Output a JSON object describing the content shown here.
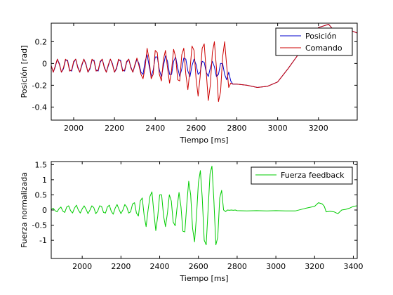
{
  "chart_data": [
    {
      "type": "line",
      "xlabel": "Tiempo [ms]",
      "ylabel": "Posición [rad]",
      "xlim": [
        1890,
        3390
      ],
      "ylim": [
        -0.52,
        0.37
      ],
      "xticks": [
        2000,
        2200,
        2400,
        2600,
        2800,
        3000,
        3200
      ],
      "yticks": [
        0.2,
        0,
        -0.2,
        -0.4
      ],
      "ytick_labels": [
        "0.2",
        "0",
        "-0.2",
        "-0.4"
      ],
      "legend": {
        "placement": "top-right"
      },
      "series": [
        {
          "name": "Posición",
          "color": "#0000cc",
          "x": [
            1890,
            1900,
            1910,
            1920,
            1930,
            1940,
            1950,
            1960,
            1970,
            1980,
            1990,
            2000,
            2010,
            2020,
            2030,
            2040,
            2050,
            2060,
            2070,
            2080,
            2090,
            2100,
            2110,
            2120,
            2130,
            2140,
            2150,
            2160,
            2170,
            2180,
            2190,
            2200,
            2210,
            2220,
            2230,
            2240,
            2250,
            2260,
            2270,
            2280,
            2290,
            2300,
            2310,
            2320,
            2330,
            2340,
            2350,
            2360,
            2370,
            2380,
            2390,
            2400,
            2410,
            2420,
            2430,
            2440,
            2450,
            2460,
            2470,
            2480,
            2490,
            2500,
            2510,
            2520,
            2530,
            2540,
            2550,
            2560,
            2570,
            2580,
            2590,
            2600,
            2610,
            2620,
            2630,
            2640,
            2650,
            2660,
            2670,
            2680,
            2690,
            2700,
            2710,
            2720,
            2730,
            2740,
            2750,
            2760,
            2770,
            2780,
            2790,
            2800,
            2850,
            2900,
            2950,
            3000,
            3050,
            3100,
            3150,
            3200,
            3250,
            3300,
            3350,
            3390
          ],
          "y": [
            -0.02,
            -0.08,
            -0.03,
            0.04,
            0.0,
            -0.08,
            -0.05,
            0.03,
            0.03,
            -0.06,
            -0.07,
            0.01,
            0.04,
            -0.03,
            -0.08,
            -0.02,
            0.04,
            0.0,
            -0.08,
            -0.05,
            0.03,
            0.03,
            -0.06,
            -0.07,
            0.01,
            0.04,
            -0.03,
            -0.08,
            -0.02,
            0.04,
            0.0,
            -0.08,
            -0.05,
            0.03,
            0.03,
            -0.06,
            -0.07,
            0.01,
            0.04,
            -0.03,
            -0.08,
            -0.02,
            0.04,
            0.0,
            -0.08,
            -0.1,
            0.02,
            0.08,
            -0.02,
            -0.12,
            -0.06,
            0.06,
            0.06,
            -0.06,
            -0.12,
            -0.02,
            0.07,
            0.02,
            -0.1,
            -0.1,
            0.02,
            0.06,
            -0.04,
            -0.12,
            -0.05,
            0.05,
            0.04,
            -0.07,
            -0.12,
            -0.02,
            0.04,
            -0.01,
            -0.1,
            -0.08,
            0.02,
            0.01,
            -0.08,
            -0.12,
            -0.04,
            0.02,
            -0.03,
            -0.12,
            -0.1,
            0.0,
            0.0,
            -0.1,
            -0.15,
            -0.08,
            -0.16,
            -0.19,
            -0.19,
            -0.19,
            -0.2,
            -0.22,
            -0.21,
            -0.17,
            -0.05,
            0.08,
            0.22,
            0.33,
            0.36,
            0.25,
            0.31,
            0.28
          ]
        },
        {
          "name": "Comando",
          "color": "#cc0000",
          "x": [
            1890,
            1900,
            1910,
            1920,
            1930,
            1940,
            1950,
            1960,
            1970,
            1980,
            1990,
            2000,
            2010,
            2020,
            2030,
            2040,
            2050,
            2060,
            2070,
            2080,
            2090,
            2100,
            2110,
            2120,
            2130,
            2140,
            2150,
            2160,
            2170,
            2180,
            2190,
            2200,
            2210,
            2220,
            2230,
            2240,
            2250,
            2260,
            2270,
            2280,
            2290,
            2300,
            2310,
            2320,
            2330,
            2340,
            2350,
            2360,
            2370,
            2380,
            2390,
            2400,
            2410,
            2420,
            2430,
            2440,
            2450,
            2460,
            2470,
            2480,
            2490,
            2500,
            2510,
            2520,
            2530,
            2540,
            2550,
            2560,
            2570,
            2580,
            2590,
            2600,
            2610,
            2620,
            2630,
            2640,
            2650,
            2660,
            2670,
            2680,
            2690,
            2700,
            2710,
            2720,
            2730,
            2740,
            2750,
            2760,
            2770,
            2780,
            2790,
            2800,
            2850,
            2900,
            2950,
            3000,
            3050,
            3100,
            3150,
            3200,
            3250,
            3300,
            3350,
            3390
          ],
          "y": [
            -0.02,
            -0.08,
            -0.02,
            0.04,
            -0.01,
            -0.08,
            -0.04,
            0.04,
            0.02,
            -0.07,
            -0.06,
            0.02,
            0.04,
            -0.04,
            -0.08,
            -0.01,
            0.04,
            -0.01,
            -0.08,
            -0.04,
            0.04,
            0.02,
            -0.07,
            -0.06,
            0.02,
            0.04,
            -0.04,
            -0.08,
            -0.01,
            0.04,
            -0.01,
            -0.08,
            -0.04,
            0.04,
            0.02,
            -0.07,
            -0.06,
            0.02,
            0.04,
            -0.04,
            -0.08,
            -0.01,
            0.05,
            -0.02,
            -0.1,
            -0.14,
            -0.04,
            0.14,
            0.04,
            -0.14,
            -0.1,
            0.12,
            0.1,
            -0.1,
            -0.16,
            0.04,
            0.12,
            -0.04,
            -0.18,
            -0.06,
            0.13,
            0.06,
            -0.15,
            -0.16,
            0.08,
            0.14,
            -0.1,
            -0.24,
            -0.06,
            0.16,
            0.12,
            -0.14,
            -0.3,
            -0.12,
            0.14,
            0.18,
            -0.08,
            -0.34,
            -0.2,
            0.1,
            0.2,
            -0.04,
            -0.35,
            -0.26,
            0.06,
            0.2,
            -0.02,
            -0.22,
            -0.18,
            -0.19,
            -0.19,
            -0.19,
            -0.2,
            -0.22,
            -0.21,
            -0.17,
            -0.05,
            0.08,
            0.22,
            0.33,
            0.36,
            0.25,
            0.31,
            0.28
          ]
        }
      ]
    },
    {
      "type": "line",
      "xlabel": "Tiempo [ms]",
      "ylabel": "Fuerza normalizada",
      "xlim": [
        1840,
        3420
      ],
      "ylim": [
        -1.6,
        1.6
      ],
      "xticks": [
        2000,
        2200,
        2400,
        2600,
        2800,
        3000,
        3200,
        3400
      ],
      "yticks": [
        1.5,
        1,
        0.5,
        0,
        -0.5,
        -1
      ],
      "ytick_labels": [
        "1.5",
        "1",
        "0.5",
        "0",
        "-0.5",
        "-1"
      ],
      "legend": {
        "placement": "top-right"
      },
      "series": [
        {
          "name": "Fuerza feedback",
          "color": "#00cc00",
          "x": [
            1840,
            1850,
            1860,
            1870,
            1880,
            1890,
            1900,
            1910,
            1920,
            1930,
            1940,
            1950,
            1960,
            1970,
            1980,
            1990,
            2000,
            2010,
            2020,
            2030,
            2040,
            2050,
            2060,
            2070,
            2080,
            2090,
            2100,
            2110,
            2120,
            2130,
            2140,
            2150,
            2160,
            2170,
            2180,
            2190,
            2200,
            2210,
            2220,
            2230,
            2240,
            2250,
            2260,
            2270,
            2280,
            2290,
            2300,
            2310,
            2320,
            2330,
            2340,
            2350,
            2360,
            2370,
            2380,
            2390,
            2400,
            2410,
            2420,
            2430,
            2440,
            2450,
            2460,
            2470,
            2480,
            2490,
            2500,
            2510,
            2520,
            2530,
            2540,
            2550,
            2560,
            2570,
            2580,
            2590,
            2600,
            2610,
            2620,
            2630,
            2640,
            2650,
            2660,
            2670,
            2680,
            2690,
            2700,
            2710,
            2720,
            2730,
            2740,
            2750,
            2760,
            2770,
            2780,
            2790,
            2800,
            2850,
            2900,
            2950,
            3000,
            3050,
            3100,
            3150,
            3200,
            3220,
            3240,
            3250,
            3260,
            3280,
            3300,
            3320,
            3340,
            3360,
            3380,
            3400,
            3420
          ],
          "y": [
            0.02,
            0.06,
            -0.02,
            -0.06,
            0.04,
            0.1,
            -0.04,
            -0.08,
            0.1,
            0.14,
            -0.02,
            -0.1,
            0.06,
            0.16,
            0.0,
            -0.1,
            0.04,
            0.14,
            0.02,
            -0.12,
            0.0,
            0.14,
            0.08,
            -0.12,
            -0.04,
            0.14,
            0.12,
            -0.08,
            -0.1,
            0.1,
            0.16,
            -0.04,
            -0.14,
            0.06,
            0.18,
            0.02,
            -0.12,
            0.0,
            0.18,
            0.1,
            -0.1,
            -0.06,
            0.2,
            0.24,
            -0.1,
            -0.2,
            0.3,
            0.4,
            -0.2,
            -0.55,
            0.0,
            0.45,
            0.6,
            -0.1,
            -0.68,
            -0.2,
            0.5,
            0.5,
            -0.2,
            -0.55,
            -0.1,
            0.5,
            0.3,
            -0.4,
            -0.52,
            0.1,
            0.58,
            0.1,
            -0.7,
            -0.72,
            0.2,
            0.95,
            0.5,
            -0.6,
            -1.05,
            -0.2,
            0.9,
            1.3,
            0.4,
            -1.0,
            -1.15,
            0.0,
            1.2,
            1.45,
            0.3,
            -1.15,
            -0.9,
            0.4,
            0.65,
            0.0,
            -0.05,
            0.0,
            -0.01,
            0.0,
            -0.01,
            0.0,
            -0.02,
            -0.03,
            -0.02,
            -0.03,
            -0.02,
            -0.03,
            -0.03,
            0.05,
            0.12,
            0.24,
            0.2,
            0.12,
            -0.06,
            -0.04,
            -0.06,
            -0.12,
            0.0,
            0.02,
            0.06,
            0.12,
            0.14
          ]
        }
      ]
    }
  ]
}
